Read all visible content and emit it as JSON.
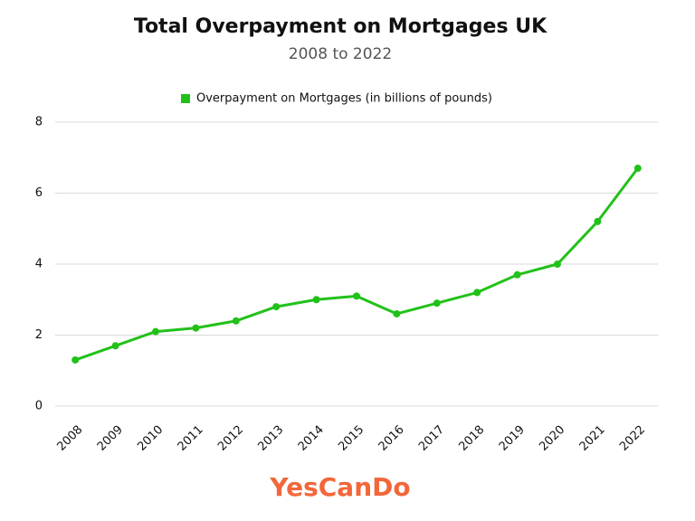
{
  "chart_data": {
    "type": "line",
    "title": "Total Overpayment on Mortgages UK",
    "subtitle": "2008 to 2022",
    "categories": [
      "2008",
      "2009",
      "2010",
      "2011",
      "2012",
      "2013",
      "2014",
      "2015",
      "2016",
      "2017",
      "2018",
      "2019",
      "2020",
      "2021",
      "2022"
    ],
    "series": [
      {
        "name": "Overpayment on Mortgages (in billions of pounds)",
        "color": "#22c11a",
        "values": [
          1.3,
          1.7,
          2.1,
          2.2,
          2.4,
          2.8,
          3.0,
          3.1,
          2.6,
          2.9,
          3.2,
          3.7,
          4.0,
          5.2,
          6.7
        ]
      }
    ],
    "ylim": [
      0,
      8
    ],
    "yticks": [
      0,
      2,
      4,
      6,
      8
    ],
    "grid": true,
    "legend": "top",
    "logo": "YesCanDo"
  }
}
